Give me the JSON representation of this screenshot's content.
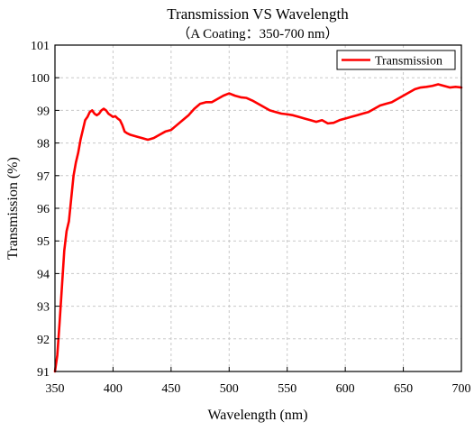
{
  "chart_data": {
    "type": "line",
    "title": "Transmission VS Wavelength",
    "subtitle": "（A Coating：350-700 nm）",
    "xlabel": "Wavelength (nm)",
    "ylabel": "Transmission (%)",
    "xlim": [
      350,
      700
    ],
    "ylim": [
      91,
      101
    ],
    "xticks": [
      350,
      400,
      450,
      500,
      550,
      600,
      650,
      700
    ],
    "yticks": [
      91,
      92,
      93,
      94,
      95,
      96,
      97,
      98,
      99,
      100,
      101
    ],
    "grid": true,
    "legend_position": "top-right",
    "series": [
      {
        "name": "Transmission",
        "color": "#ff0000",
        "x": [
          350,
          352,
          354,
          356,
          358,
          360,
          362,
          364,
          366,
          368,
          370,
          372,
          374,
          376,
          378,
          380,
          382,
          384,
          386,
          388,
          390,
          392,
          394,
          396,
          398,
          400,
          402,
          404,
          406,
          408,
          410,
          412,
          415,
          420,
          425,
          430,
          435,
          440,
          445,
          450,
          455,
          460,
          465,
          470,
          475,
          480,
          485,
          490,
          495,
          500,
          505,
          510,
          515,
          520,
          525,
          530,
          535,
          540,
          545,
          550,
          555,
          560,
          565,
          570,
          575,
          580,
          585,
          590,
          595,
          600,
          605,
          610,
          615,
          620,
          625,
          630,
          635,
          640,
          645,
          650,
          655,
          660,
          665,
          670,
          675,
          680,
          685,
          690,
          695,
          700
        ],
        "y": [
          91.0,
          91.5,
          92.5,
          93.6,
          94.7,
          95.3,
          95.6,
          96.3,
          97.0,
          97.4,
          97.7,
          98.1,
          98.4,
          98.7,
          98.8,
          98.95,
          99.0,
          98.9,
          98.85,
          98.9,
          99.0,
          99.05,
          99.0,
          98.9,
          98.85,
          98.8,
          98.82,
          98.75,
          98.7,
          98.55,
          98.35,
          98.3,
          98.25,
          98.2,
          98.15,
          98.1,
          98.15,
          98.25,
          98.35,
          98.4,
          98.55,
          98.7,
          98.85,
          99.05,
          99.2,
          99.25,
          99.25,
          99.35,
          99.45,
          99.52,
          99.45,
          99.4,
          99.38,
          99.3,
          99.2,
          99.1,
          99.0,
          98.95,
          98.9,
          98.88,
          98.85,
          98.8,
          98.75,
          98.7,
          98.65,
          98.7,
          98.6,
          98.62,
          98.7,
          98.75,
          98.8,
          98.85,
          98.9,
          98.95,
          99.05,
          99.15,
          99.2,
          99.25,
          99.35,
          99.45,
          99.55,
          99.65,
          99.7,
          99.72,
          99.75,
          99.8,
          99.75,
          99.7,
          99.72,
          99.7
        ]
      }
    ]
  }
}
